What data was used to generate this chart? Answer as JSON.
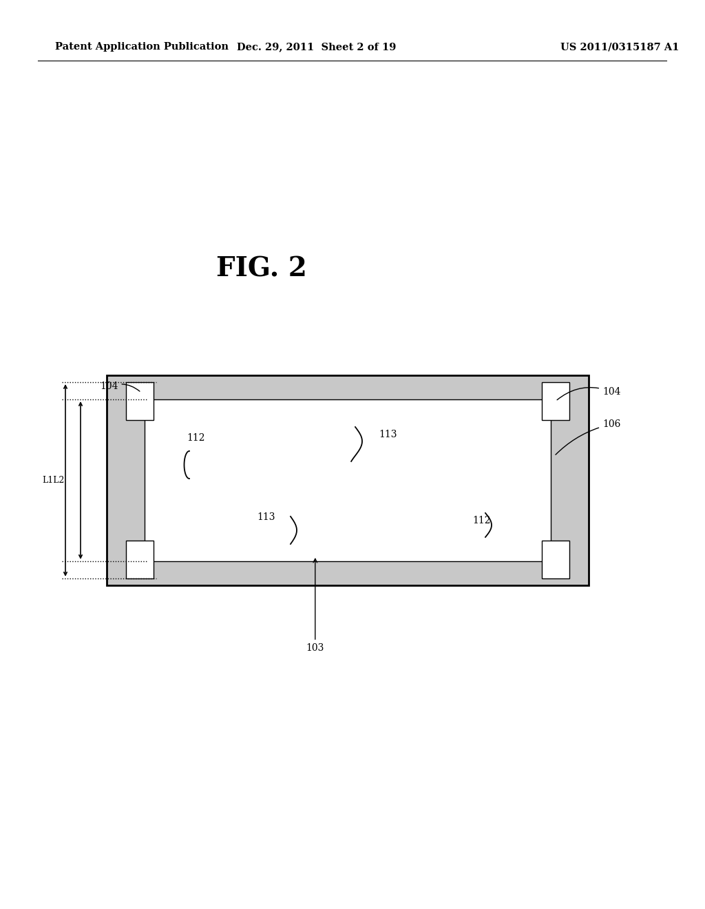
{
  "bg_color": "#ffffff",
  "header_left": "Patent Application Publication",
  "header_mid": "Dec. 29, 2011  Sheet 2 of 19",
  "header_right": "US 2011/0315187 A1",
  "fig_title": "FIG. 2",
  "label_104_left": "104",
  "label_104_right": "104",
  "label_106": "106",
  "label_112a": "112",
  "label_112b": "112",
  "label_113a": "113",
  "label_113b": "113",
  "label_103": "103",
  "label_L1L2": "L1L2"
}
